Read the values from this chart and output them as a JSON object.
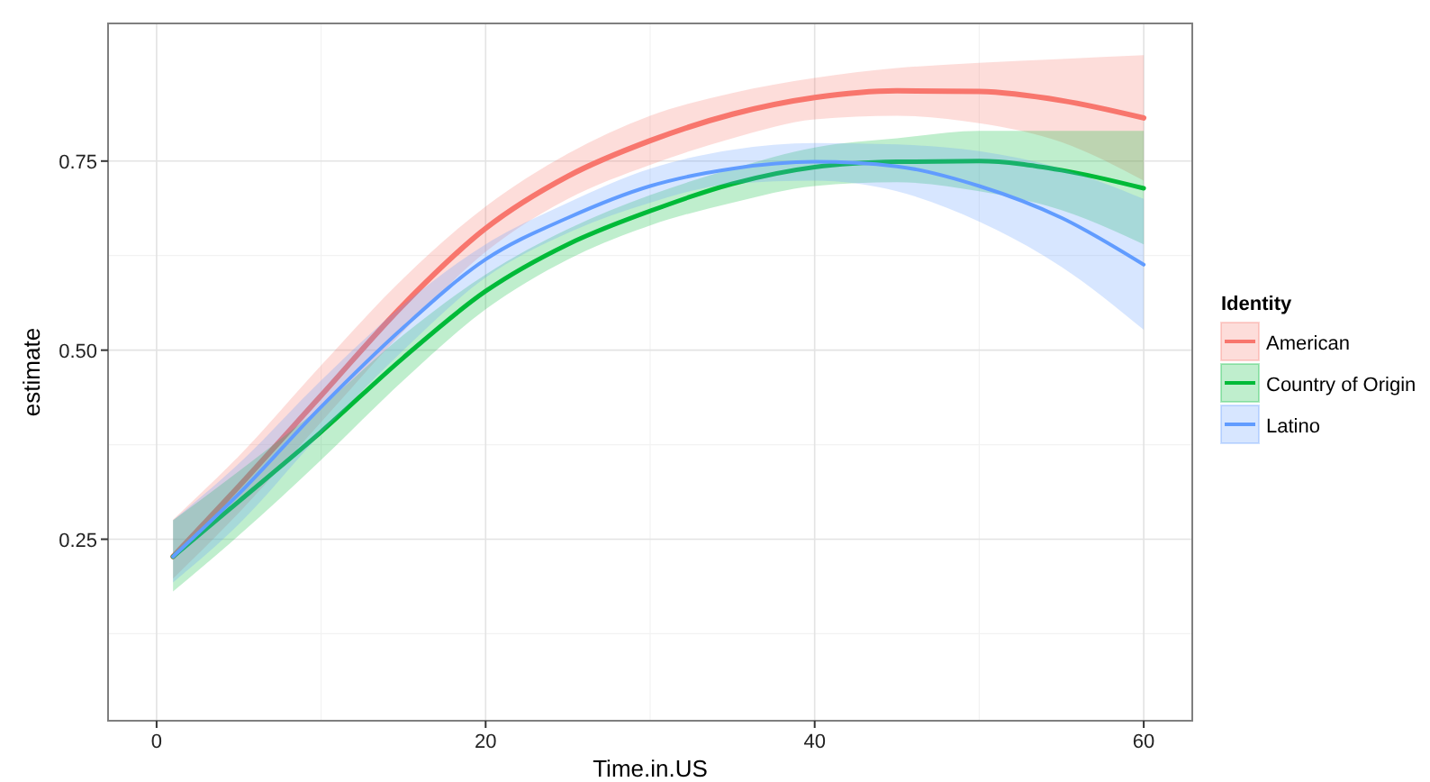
{
  "chart_data": {
    "type": "line",
    "xlabel": "Time.in.US",
    "ylabel": "estimate",
    "legend_title": "Identity",
    "legend": "right",
    "grid": true,
    "marker": "none",
    "line_style": "solid",
    "x": [
      1,
      5,
      10,
      15,
      20,
      25,
      30,
      35,
      40,
      45,
      50,
      55,
      60
    ],
    "xlim": [
      -2.95,
      62.95
    ],
    "xticks": [
      0,
      20,
      40,
      60
    ],
    "ylim": [
      0.01,
      0.932
    ],
    "yticks": [
      0.25,
      {
        "value": 0.5,
        "label": "0.50"
      },
      0.75
    ],
    "series": [
      {
        "name": "American",
        "color": "#f8766d",
        "values": [
          0.227,
          0.32,
          0.44,
          0.56,
          0.661,
          0.73,
          0.777,
          0.812,
          0.834,
          0.843,
          0.842,
          0.83,
          0.807
        ],
        "upper": [
          0.276,
          0.36,
          0.48,
          0.595,
          0.69,
          0.76,
          0.81,
          0.84,
          0.86,
          0.873,
          0.88,
          0.885,
          0.89
        ],
        "lower": [
          0.198,
          0.285,
          0.405,
          0.525,
          0.63,
          0.7,
          0.745,
          0.78,
          0.805,
          0.81,
          0.8,
          0.775,
          0.724
        ]
      },
      {
        "name": "Country of Origin",
        "color": "#00ba38",
        "values": [
          0.227,
          0.3,
          0.392,
          0.49,
          0.578,
          0.64,
          0.684,
          0.72,
          0.742,
          0.749,
          0.75,
          0.738,
          0.714
        ],
        "upper": [
          0.275,
          0.34,
          0.425,
          0.52,
          0.6,
          0.66,
          0.705,
          0.74,
          0.768,
          0.78,
          0.79,
          0.79,
          0.79
        ],
        "lower": [
          0.181,
          0.255,
          0.355,
          0.46,
          0.554,
          0.62,
          0.665,
          0.695,
          0.717,
          0.722,
          0.71,
          0.685,
          0.64
        ]
      },
      {
        "name": "Latino",
        "color": "#619cff",
        "values": [
          0.227,
          0.31,
          0.425,
          0.53,
          0.62,
          0.675,
          0.717,
          0.74,
          0.749,
          0.743,
          0.717,
          0.675,
          0.613
        ],
        "upper": [
          0.275,
          0.35,
          0.46,
          0.56,
          0.64,
          0.695,
          0.74,
          0.765,
          0.774,
          0.772,
          0.763,
          0.74,
          0.7
        ],
        "lower": [
          0.193,
          0.27,
          0.39,
          0.5,
          0.596,
          0.655,
          0.695,
          0.72,
          0.724,
          0.71,
          0.67,
          0.61,
          0.527
        ]
      }
    ]
  }
}
